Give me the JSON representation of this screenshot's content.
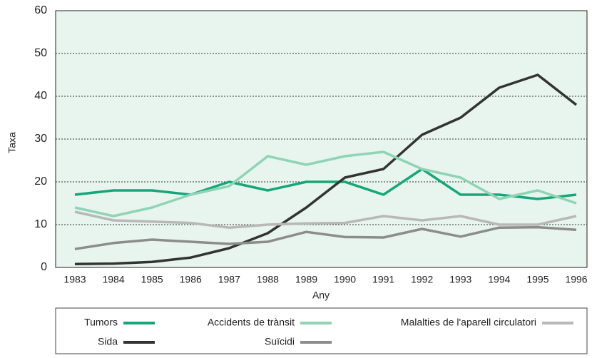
{
  "chart_data": {
    "type": "line",
    "xlabel": "Any",
    "ylabel": "Taxa",
    "categories": [
      "1983",
      "1984",
      "1985",
      "1986",
      "1987",
      "1988",
      "1989",
      "1990",
      "1991",
      "1992",
      "1993",
      "1994",
      "1995",
      "1996"
    ],
    "series": [
      {
        "name": "Tumors",
        "color": "#17a67b",
        "values": [
          17,
          18,
          18,
          17,
          20,
          18,
          20,
          20,
          17,
          23,
          17,
          17,
          16,
          17
        ]
      },
      {
        "name": "Sida",
        "color": "#333333",
        "values": [
          0.8,
          0.9,
          1.3,
          2.3,
          4.5,
          8,
          14,
          21,
          23,
          31,
          35,
          42,
          45,
          38
        ]
      },
      {
        "name": "Accidents de trànsit",
        "color": "#8fd4b4",
        "values": [
          14,
          12,
          14,
          17,
          19,
          26,
          24,
          26,
          27,
          23,
          21,
          16,
          18,
          15
        ]
      },
      {
        "name": "Suïcidi",
        "color": "#8c8c8c",
        "values": [
          4.3,
          5.7,
          6.5,
          6,
          5.5,
          6,
          8.3,
          7.1,
          7,
          9,
          7.2,
          9.3,
          9.4,
          8.8
        ]
      },
      {
        "name": "Malalties de l'aparell circulatori",
        "color": "#b8b8b8",
        "values": [
          13,
          11,
          10.7,
          10.4,
          9.3,
          10,
          10.3,
          10.4,
          12,
          11,
          12,
          10,
          10,
          12
        ]
      }
    ],
    "ylim": [
      0,
      60
    ],
    "yticks": [
      0,
      10,
      20,
      30,
      40,
      50,
      60
    ],
    "grid": true
  }
}
